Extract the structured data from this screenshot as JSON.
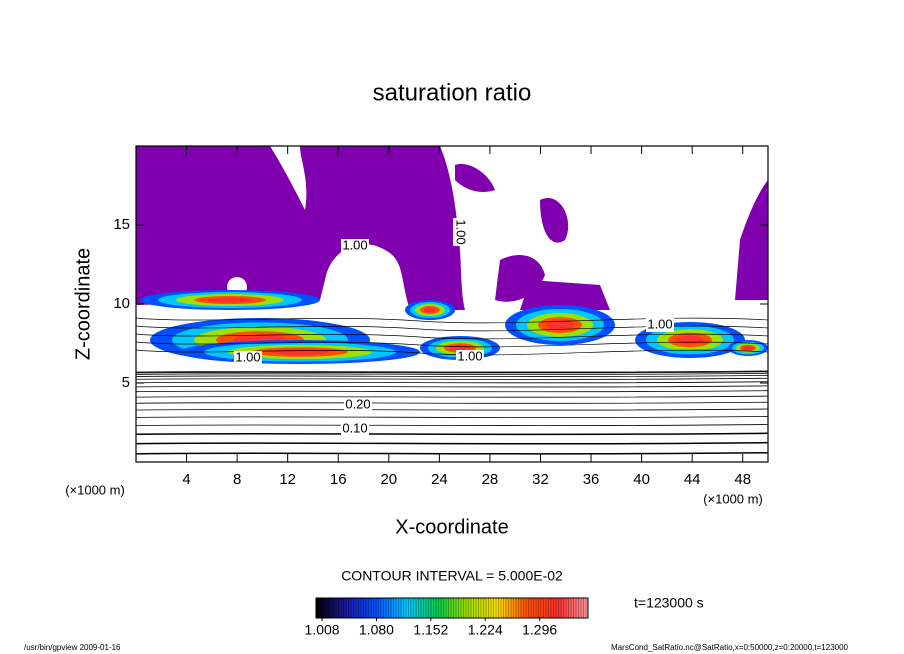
{
  "chart_data": {
    "type": "contour",
    "title": "saturation ratio",
    "x_label": "X-coordinate",
    "y_label": "Z-coordinate",
    "x_unit": "(×1000 m)",
    "y_unit": "(×1000 m)",
    "xlim": [
      0,
      50
    ],
    "ylim": [
      0,
      20
    ],
    "xticks": [
      4,
      8,
      12,
      16,
      20,
      24,
      28,
      32,
      36,
      40,
      44,
      48
    ],
    "yticks": [
      5,
      10,
      15
    ],
    "contour_labels": [
      "1.00",
      "1.00",
      "1.00",
      "1.00",
      "1.00",
      "0.20",
      "0.10"
    ],
    "contour_interval": "CONTOUR INTERVAL = 5.000E-02",
    "time_label": "t=123000 s",
    "colorbar": {
      "lim": [
        1.0,
        1.36
      ],
      "ticks": [
        1.008,
        {
          "value": 1.08,
          "label": "1.080"
        },
        1.152,
        1.224,
        1.296
      ],
      "colors": [
        "#000000",
        "#1a1aa0",
        "#0050ff",
        "#00c8ff",
        "#00d050",
        "#a0e000",
        "#ffe000",
        "#ff5000",
        "#ff3030",
        "#ff9aa0"
      ]
    },
    "fill_color": "#8000b0",
    "footer_left": "/usr/bin/gpview  2009-01-16",
    "footer_right": "MarsCond_SatRatio.nc@SatRatio,x=0:50000,z=0:20000,t=123000"
  }
}
